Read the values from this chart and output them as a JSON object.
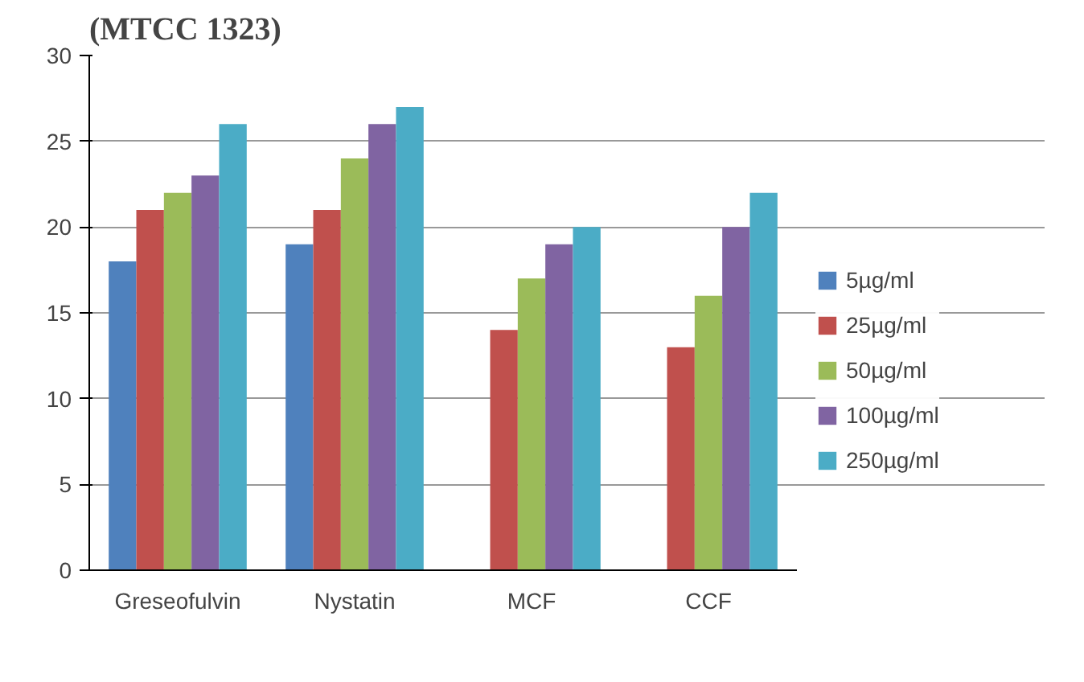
{
  "chart_data": {
    "type": "bar",
    "title": "(MTCC 1323)",
    "categories": [
      "Greseofulvin",
      "Nystatin",
      "MCF",
      "CCF"
    ],
    "series": [
      {
        "name": "5µg/ml",
        "color": "#4f81bd",
        "values": [
          18,
          19,
          null,
          null
        ]
      },
      {
        "name": "25µg/ml",
        "color": "#c0504d",
        "values": [
          21,
          21,
          14,
          13
        ]
      },
      {
        "name": "50µg/ml",
        "color": "#9bbb59",
        "values": [
          22,
          24,
          17,
          16
        ]
      },
      {
        "name": "100µg/ml",
        "color": "#8064a2",
        "values": [
          23,
          26,
          19,
          20
        ]
      },
      {
        "name": "250µg/ml",
        "color": "#4bacc6",
        "values": [
          26,
          27,
          20,
          22
        ]
      }
    ],
    "ylim": [
      0,
      30
    ],
    "yticks": [
      0,
      5,
      10,
      15,
      20,
      25,
      30
    ],
    "grid": "y",
    "legend": "right"
  }
}
